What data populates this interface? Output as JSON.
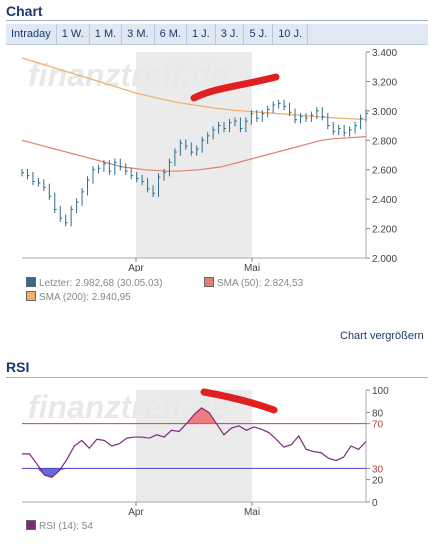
{
  "chart_section": {
    "title": "Chart"
  },
  "tabs": [
    "Intraday",
    "1 W.",
    "1 M.",
    "3 M.",
    "6 M.",
    "1 J.",
    "3 J.",
    "5 J.",
    "10 J."
  ],
  "watermark": "finanztreff.de",
  "legend": {
    "last": "Letzter: 2.982,68 (30.05.03)",
    "sma50": "SMA (50): 2.824,53",
    "sma200": "SMA (200): 2.940,95"
  },
  "enlarge_link": "Chart vergrößern",
  "rsi_section": {
    "title": "RSI",
    "legend": "RSI (14): 54"
  },
  "colors": {
    "price": "#2f6d8f",
    "sma50": "#e08070",
    "sma200": "#f0b070",
    "rsi": "#7a2a7a",
    "highlight": "#ebebeb",
    "annotation": "#e02020"
  },
  "chart_data": [
    {
      "type": "bar",
      "xlabels": [
        "Apr",
        "Mai"
      ],
      "ylim": [
        2000,
        3400
      ],
      "yticks": [
        "3.400",
        "3.200",
        "3.000",
        "2.800",
        "2.600",
        "2.400",
        "2.200",
        "2.000"
      ],
      "series": [
        {
          "name": "Letzter",
          "values": [
            2580,
            2560,
            2520,
            2510,
            2480,
            2420,
            2330,
            2270,
            2240,
            2330,
            2380,
            2450,
            2530,
            2600,
            2610,
            2640,
            2590,
            2650,
            2620,
            2590,
            2560,
            2540,
            2520,
            2470,
            2440,
            2550,
            2580,
            2650,
            2720,
            2780,
            2760,
            2720,
            2740,
            2800,
            2830,
            2870,
            2900,
            2880,
            2920,
            2930,
            2880,
            2930,
            2980,
            2950,
            2980,
            3010,
            3040,
            3050,
            3030,
            2990,
            2940,
            2960,
            2950,
            2970,
            3000,
            2960,
            2900,
            2860,
            2880,
            2850,
            2870,
            2900,
            2950,
            2983
          ]
        },
        {
          "name": "SMA (50)",
          "values": [
            2800,
            2780,
            2760,
            2740,
            2720,
            2700,
            2680,
            2660,
            2640,
            2620,
            2610,
            2600,
            2595,
            2590,
            2590,
            2595,
            2600,
            2610,
            2620,
            2640,
            2660,
            2680,
            2700,
            2720,
            2740,
            2760,
            2780,
            2800,
            2810,
            2815,
            2820,
            2825
          ]
        },
        {
          "name": "SMA (200)",
          "values": [
            3360,
            3320,
            3280,
            3240,
            3200,
            3160,
            3120,
            3090,
            3060,
            3040,
            3020,
            3005,
            2995,
            2985,
            2975,
            2965,
            2955,
            2948,
            2941
          ]
        }
      ]
    },
    {
      "type": "line",
      "xlabels": [
        "Apr",
        "Mai"
      ],
      "ylim": [
        0,
        100
      ],
      "yticks": [
        "100",
        "80",
        "70",
        "30",
        "20",
        "0"
      ],
      "series": [
        {
          "name": "RSI (14)",
          "values": [
            43,
            43,
            34,
            24,
            22,
            28,
            38,
            50,
            55,
            48,
            56,
            55,
            50,
            52,
            57,
            58,
            58,
            57,
            60,
            58,
            64,
            63,
            70,
            78,
            84,
            80,
            70,
            60,
            66,
            68,
            64,
            67,
            65,
            62,
            56,
            49,
            51,
            59,
            47,
            45,
            44,
            39,
            37,
            40,
            50,
            47,
            54
          ]
        }
      ]
    }
  ]
}
